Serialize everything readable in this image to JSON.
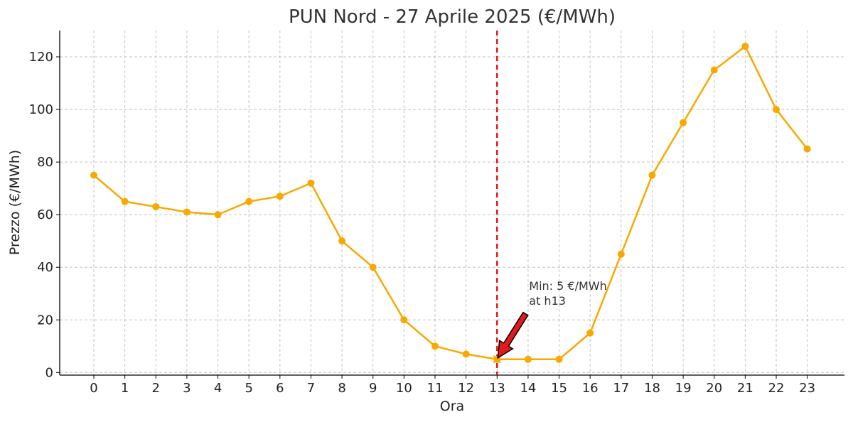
{
  "chart_data": {
    "type": "line",
    "title": "PUN Nord - 27 Aprile 2025 (€/MWh)",
    "xlabel": "Ora",
    "ylabel": "Prezzo (€/MWh)",
    "x": [
      0,
      1,
      2,
      3,
      4,
      5,
      6,
      7,
      8,
      9,
      10,
      11,
      12,
      13,
      14,
      15,
      16,
      17,
      18,
      19,
      20,
      21,
      22,
      23
    ],
    "series": [
      {
        "values": [
          75,
          65,
          63,
          61,
          60,
          65,
          67,
          72,
          50,
          40,
          20,
          10,
          7,
          5,
          5,
          5,
          15,
          45,
          75,
          95,
          115,
          124,
          100,
          85
        ]
      }
    ],
    "xlim": [
      -1.1,
      24.2
    ],
    "ylim": [
      -1,
      130
    ],
    "yticks": [
      0,
      20,
      40,
      60,
      80,
      100,
      120
    ],
    "grid": true,
    "line_color": "#F7A900",
    "marker_color": "#F7A900",
    "vline": {
      "x": 13,
      "color": "#E31A1C",
      "style": "dashed"
    },
    "annotation": {
      "line1": "Min: 5 €/MWh",
      "line2": "at h13",
      "x": 13,
      "y": 5,
      "arrow_color": "#E31A1C"
    }
  }
}
